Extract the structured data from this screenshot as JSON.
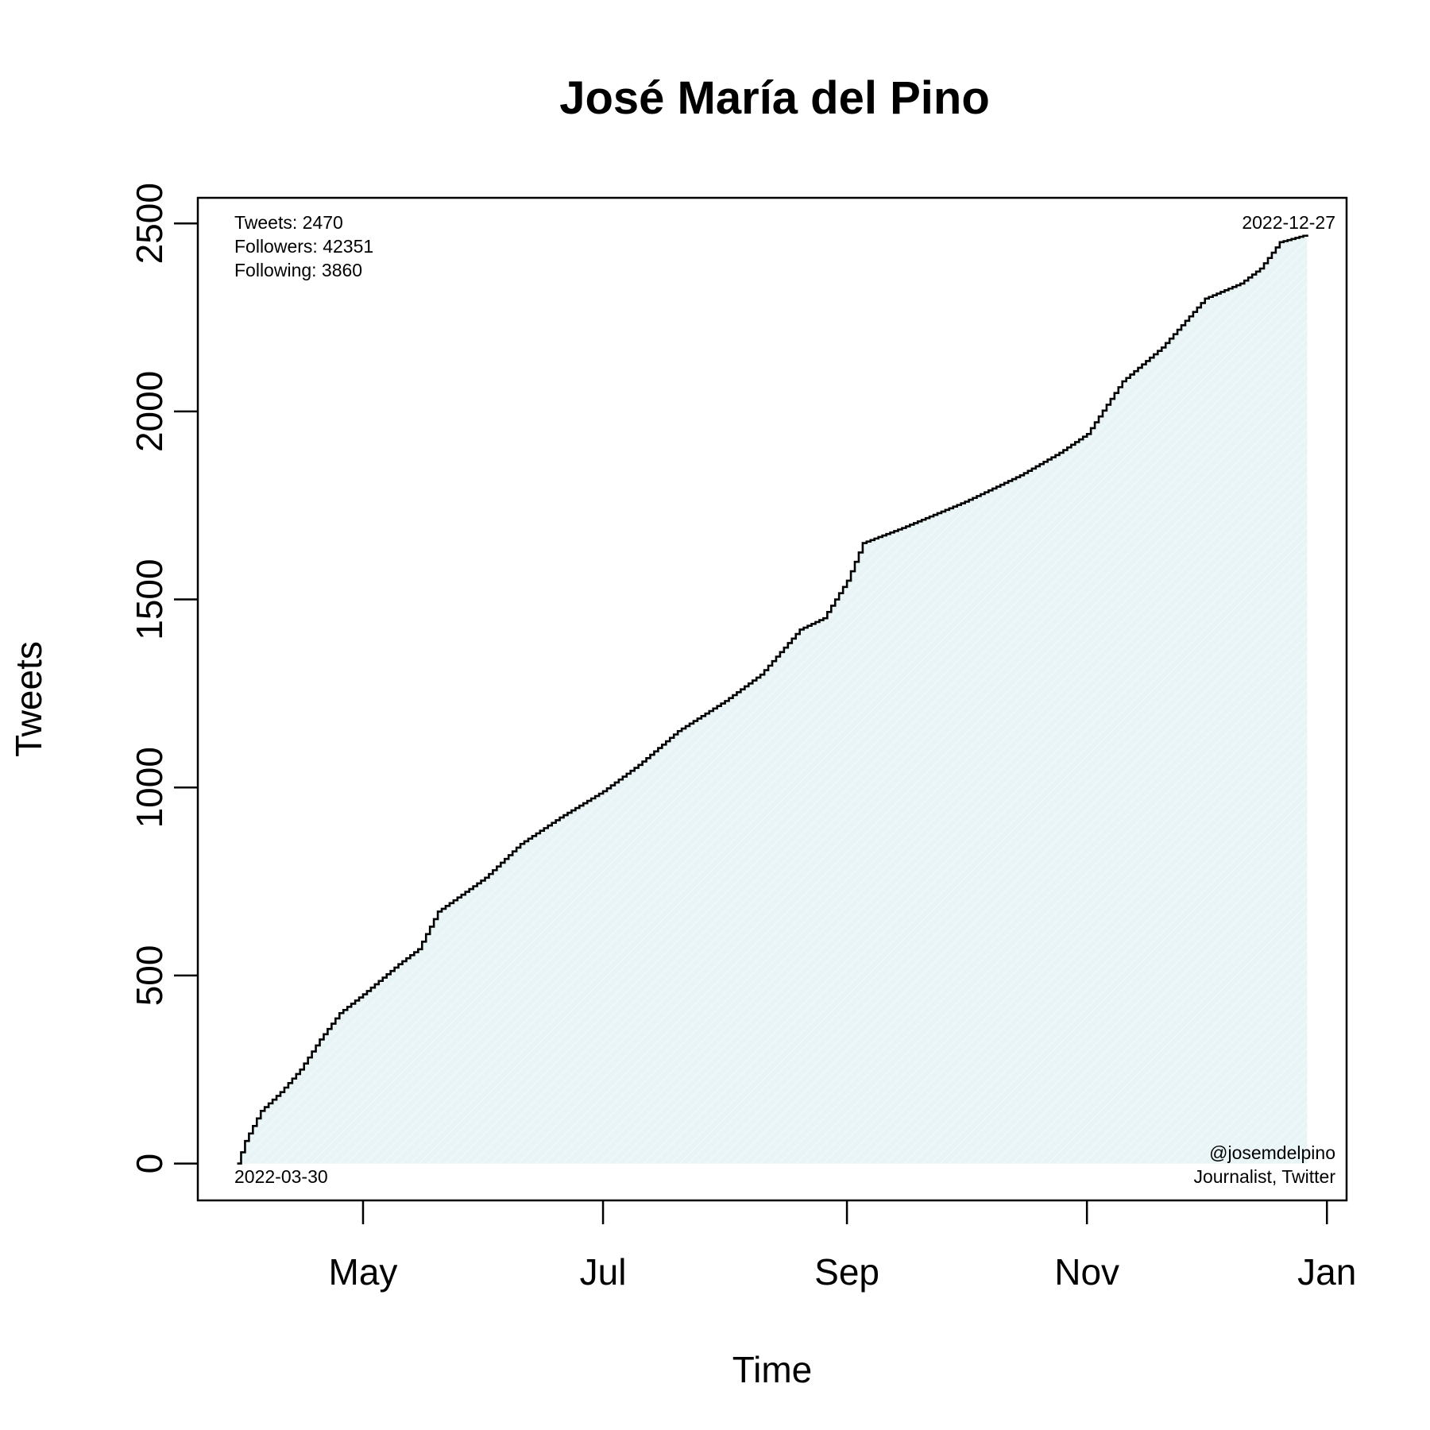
{
  "chart_data": {
    "type": "line",
    "title": "José María del Pino",
    "xlabel": "Time",
    "ylabel": "Tweets",
    "x_ticks": [
      {
        "date": "2022-05-01",
        "label": "May"
      },
      {
        "date": "2022-07-01",
        "label": "Jul"
      },
      {
        "date": "2022-09-01",
        "label": "Sep"
      },
      {
        "date": "2022-11-01",
        "label": "Nov"
      },
      {
        "date": "2023-01-01",
        "label": "Jan"
      }
    ],
    "y_ticks": [
      0,
      500,
      1000,
      1500,
      2000,
      2500
    ],
    "xlim": [
      "2022-03-20",
      "2023-01-06"
    ],
    "ylim": [
      -98,
      2568
    ],
    "grid": false,
    "fill_color": "#e8f4f6",
    "line_color": "#000000",
    "series": [
      {
        "points": [
          {
            "x": "2022-03-30",
            "y": 0
          },
          {
            "x": "2022-04-01",
            "y": 60
          },
          {
            "x": "2022-04-05",
            "y": 140
          },
          {
            "x": "2022-04-10",
            "y": 190
          },
          {
            "x": "2022-04-15",
            "y": 250
          },
          {
            "x": "2022-04-20",
            "y": 330
          },
          {
            "x": "2022-04-25",
            "y": 400
          },
          {
            "x": "2022-05-01",
            "y": 450
          },
          {
            "x": "2022-05-10",
            "y": 530
          },
          {
            "x": "2022-05-15",
            "y": 570
          },
          {
            "x": "2022-05-20",
            "y": 670
          },
          {
            "x": "2022-06-01",
            "y": 760
          },
          {
            "x": "2022-06-10",
            "y": 850
          },
          {
            "x": "2022-06-20",
            "y": 920
          },
          {
            "x": "2022-07-01",
            "y": 990
          },
          {
            "x": "2022-07-10",
            "y": 1060
          },
          {
            "x": "2022-07-20",
            "y": 1150
          },
          {
            "x": "2022-08-01",
            "y": 1230
          },
          {
            "x": "2022-08-10",
            "y": 1300
          },
          {
            "x": "2022-08-20",
            "y": 1420
          },
          {
            "x": "2022-08-26",
            "y": 1450
          },
          {
            "x": "2022-09-01",
            "y": 1550
          },
          {
            "x": "2022-09-05",
            "y": 1650
          },
          {
            "x": "2022-09-15",
            "y": 1690
          },
          {
            "x": "2022-10-01",
            "y": 1760
          },
          {
            "x": "2022-10-15",
            "y": 1830
          },
          {
            "x": "2022-10-25",
            "y": 1890
          },
          {
            "x": "2022-11-01",
            "y": 1940
          },
          {
            "x": "2022-11-10",
            "y": 2080
          },
          {
            "x": "2022-11-20",
            "y": 2170
          },
          {
            "x": "2022-12-01",
            "y": 2300
          },
          {
            "x": "2022-12-10",
            "y": 2340
          },
          {
            "x": "2022-12-15",
            "y": 2380
          },
          {
            "x": "2022-12-20",
            "y": 2450
          },
          {
            "x": "2022-12-27",
            "y": 2470
          }
        ]
      }
    ],
    "annotations": {
      "tweets": "Tweets: 2470",
      "followers": "Followers: 42351",
      "following": "Following: 3860",
      "start_date": "2022-03-30",
      "end_date": "2022-12-27",
      "handle": "@josemdelpino",
      "description": "Journalist, Twitter"
    }
  }
}
